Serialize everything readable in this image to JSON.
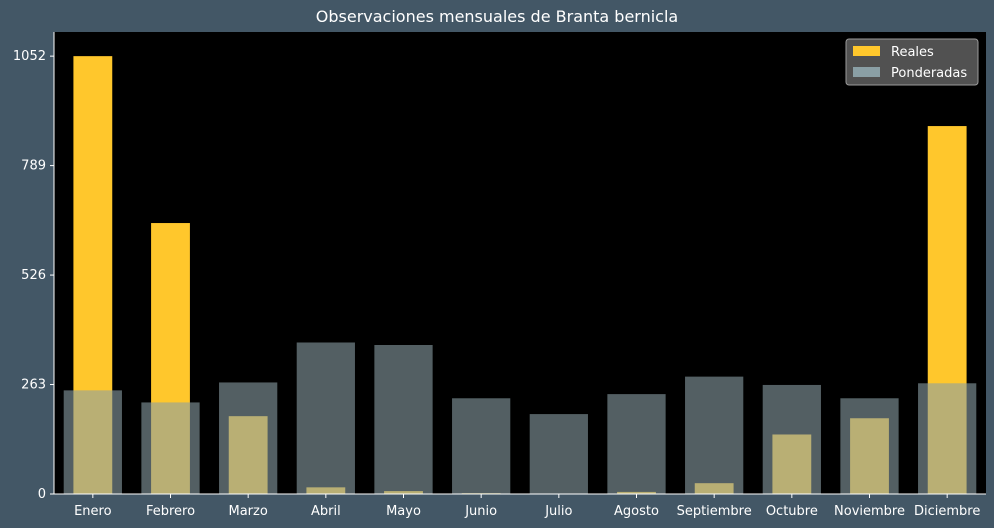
{
  "chart_data": {
    "type": "bar",
    "title": "Observaciones mensuales de Branta bernicla",
    "xlabel": "",
    "ylabel": "",
    "categories": [
      "Enero",
      "Febrero",
      "Marzo",
      "Abril",
      "Mayo",
      "Junio",
      "Julio",
      "Agosto",
      "Septiembre",
      "Octubre",
      "Noviembre",
      "Diciembre"
    ],
    "series": [
      {
        "name": "Reales",
        "color": "#ffc72c",
        "values": [
          1052,
          651,
          187,
          16,
          7,
          2,
          0,
          5,
          26,
          143,
          182,
          884
        ]
      },
      {
        "name": "Ponderadas",
        "color": "#8a9fa5",
        "values": [
          249,
          220,
          268,
          364,
          358,
          230,
          192,
          240,
          282,
          262,
          230,
          266
        ]
      }
    ],
    "ylim": [
      0,
      1110
    ],
    "yticks": [
      0,
      263,
      526,
      789,
      1052
    ],
    "grid": false,
    "legend_position": "top-right",
    "background": "#000000",
    "figure_background": "#435766"
  }
}
